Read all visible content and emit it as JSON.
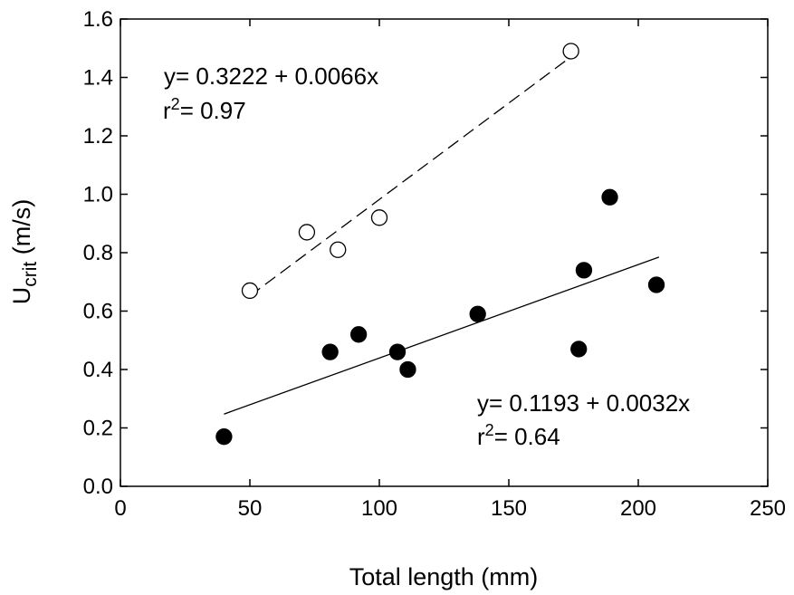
{
  "chart_data": {
    "type": "scatter",
    "xlabel": "Total length (mm)",
    "ylabel": {
      "main": "U",
      "sub": "crit",
      "unit": " (m/s)"
    },
    "xlim": [
      0,
      250
    ],
    "ylim": [
      0.0,
      1.6
    ],
    "xticks": [
      "0",
      "50",
      "100",
      "150",
      "200",
      "250"
    ],
    "yticks": [
      "0.0",
      "0.2",
      "0.4",
      "0.6",
      "0.8",
      "1.0",
      "1.2",
      "1.4",
      "1.6"
    ],
    "grid": false,
    "series": [
      {
        "marker": "open-circle",
        "line_style": "dashed",
        "points": [
          {
            "x": 50,
            "y": 0.67
          },
          {
            "x": 72,
            "y": 0.87
          },
          {
            "x": 84,
            "y": 0.81
          },
          {
            "x": 100,
            "y": 0.92
          },
          {
            "x": 174,
            "y": 1.49
          }
        ],
        "fit": {
          "intercept": 0.3222,
          "slope": 0.0066,
          "x_range": [
            50,
            174
          ]
        },
        "equation": "y= 0.3222 + 0.0066x",
        "r2_label": "r",
        "r2_sup": "2",
        "r2_value": "= 0.97"
      },
      {
        "marker": "filled-circle",
        "line_style": "solid",
        "points": [
          {
            "x": 40,
            "y": 0.17
          },
          {
            "x": 81,
            "y": 0.46
          },
          {
            "x": 92,
            "y": 0.52
          },
          {
            "x": 107,
            "y": 0.46
          },
          {
            "x": 111,
            "y": 0.4
          },
          {
            "x": 138,
            "y": 0.59
          },
          {
            "x": 177,
            "y": 0.47
          },
          {
            "x": 179,
            "y": 0.74
          },
          {
            "x": 189,
            "y": 0.99
          },
          {
            "x": 207,
            "y": 0.69
          }
        ],
        "fit": {
          "intercept": 0.1193,
          "slope": 0.0032,
          "x_range": [
            40,
            208
          ]
        },
        "equation": "y= 0.1193 + 0.0032x",
        "r2_label": "r",
        "r2_sup": "2",
        "r2_value": "= 0.64"
      }
    ]
  }
}
